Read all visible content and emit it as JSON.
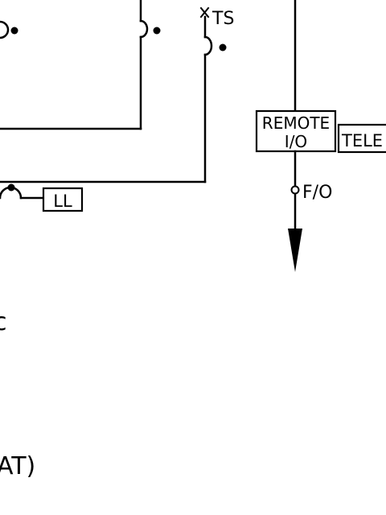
{
  "labels": {
    "ts": "TS",
    "remote_line1": "REMOTE",
    "remote_line2": "I/O",
    "tele": "TELE",
    "fo": "F/O",
    "ll": "LL",
    "partial_c": "c",
    "partial_at": "AT)"
  },
  "colors": {
    "ink": "#000000",
    "paper": "#ffffff"
  }
}
